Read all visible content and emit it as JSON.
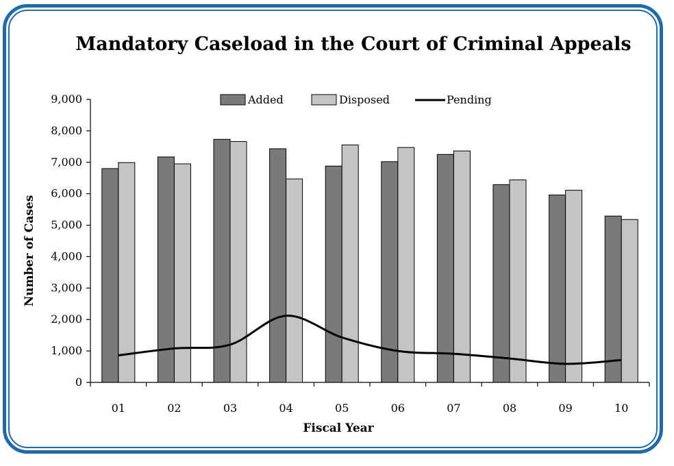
{
  "chart_data": {
    "type": "bar",
    "title": "Mandatory Caseload in the Court of Criminal Appeals",
    "xlabel": "Fiscal Year",
    "ylabel": "Number of Cases",
    "ylim": [
      0,
      9000
    ],
    "yticks": [
      "0",
      "1,000",
      "2,000",
      "3,000",
      "4,000",
      "5,000",
      "6,000",
      "7,000",
      "8,000",
      "9,000"
    ],
    "categories": [
      "01",
      "02",
      "03",
      "04",
      "05",
      "06",
      "07",
      "08",
      "09",
      "10"
    ],
    "series": [
      {
        "name": "Added",
        "type": "bar",
        "color": "#7a7a7a",
        "values": [
          6800,
          7170,
          7730,
          7430,
          6880,
          7020,
          7250,
          6290,
          5960,
          5290
        ]
      },
      {
        "name": "Disposed",
        "type": "bar",
        "color": "#c4c4c4",
        "values": [
          6990,
          6950,
          7660,
          6470,
          7550,
          7470,
          7360,
          6440,
          6110,
          5180
        ]
      },
      {
        "name": "Pending",
        "type": "line",
        "color": "#000000",
        "values": [
          860,
          1080,
          1200,
          2120,
          1430,
          1000,
          910,
          760,
          590,
          710
        ]
      }
    ],
    "legend_position": "top",
    "grid": false
  }
}
